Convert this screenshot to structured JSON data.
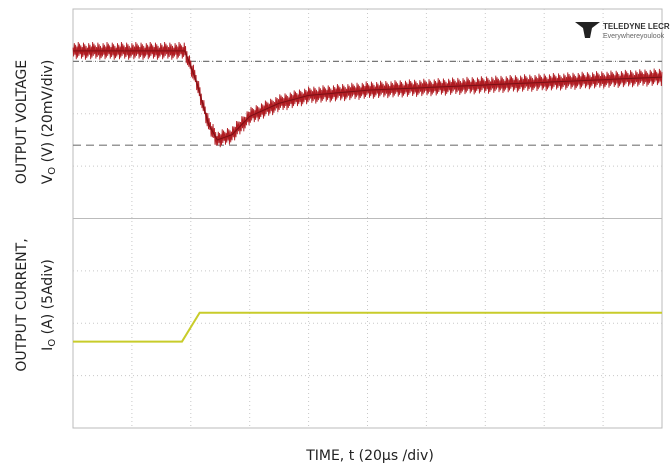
{
  "chart_data": {
    "type": "line",
    "title": "",
    "xlabel": "TIME, t (20µs /div)",
    "x_divisions": 10,
    "grid": true,
    "logo": {
      "brand": "TELEDYNE LECROY",
      "tagline": "Everywhereyoulook"
    },
    "panels": [
      {
        "name": "voltage",
        "ylabel_line1": "OUTPUT VOLTAGE",
        "ylabel_line2": "V",
        "ylabel_sub": "O",
        "ylabel_line2_rest": " (V) (20mV/div)",
        "y_divisions": 4,
        "ylim_div": [
          0,
          4
        ],
        "color": "#b01c22",
        "x_div": [
          0,
          1.9,
          2.1,
          2.3,
          2.45,
          2.7,
          3.0,
          3.5,
          4.0,
          5.0,
          6.0,
          7.0,
          8.0,
          9.0,
          10.0
        ],
        "y_div": [
          3.2,
          3.2,
          2.6,
          1.8,
          1.5,
          1.6,
          1.95,
          2.2,
          2.35,
          2.45,
          2.5,
          2.55,
          2.6,
          2.65,
          2.7
        ],
        "ripple_div": 0.18,
        "ref_lines_div": [
          3.0,
          1.4
        ]
      },
      {
        "name": "current",
        "ylabel_line1": "OUTPUT CURRENT,",
        "ylabel_line2": "I",
        "ylabel_sub": "O",
        "ylabel_line2_rest": " (A)  (5Adiv)",
        "y_divisions": 4,
        "ylim_div": [
          0,
          4
        ],
        "color": "#c8cc2a",
        "x_div": [
          0,
          1.85,
          2.15,
          10.0
        ],
        "y_div": [
          1.65,
          1.65,
          2.2,
          2.2
        ]
      }
    ]
  }
}
